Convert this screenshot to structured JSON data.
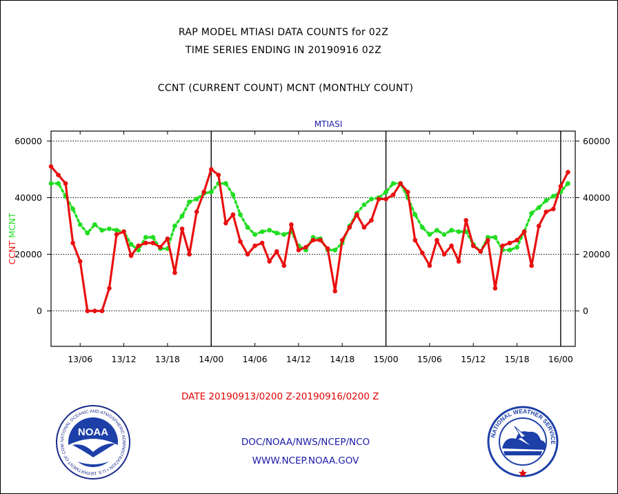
{
  "header": {
    "title_line1": "RAP MODEL MTIASI DATA COUNTS for 02Z",
    "title_line2": "TIME SERIES ENDING IN 20190916 02Z",
    "title_line3": "CCNT (CURRENT COUNT) MCNT (MONTHLY COUNT)"
  },
  "footer": {
    "date_range": "DATE 20190913/0200 Z-20190916/0200 Z",
    "org": "DOC/NOAA/NWS/NCEP/NCO",
    "url": "WWW.NCEP.NOAA.GOV"
  },
  "logos": {
    "noaa_text": "NOAA",
    "noaa_ring": "NATIONAL OCEANIC AND ATMOSPHERIC ADMINISTRATION • U.S. DEPARTMENT OF COMMERCE",
    "nws_ring": "NATIONAL WEATHER SERVICE"
  },
  "colors": {
    "ccnt": "#e81010",
    "mcnt": "#22dd22",
    "label_blue": "#1a1aa8",
    "footer_red": "#e00000"
  },
  "chart_data": {
    "type": "line",
    "title": "MTIASI",
    "ylabel_left_parts": [
      {
        "text": "CCNT",
        "color": "#e81010"
      },
      {
        "text": "MCNT",
        "color": "#22dd22"
      }
    ],
    "ylim": [
      -12500,
      63500
    ],
    "yticks": [
      0,
      20000,
      40000,
      60000
    ],
    "ytick_labels": [
      "0",
      "20000",
      "40000",
      "60000"
    ],
    "x_start_hour": 0,
    "x_end_hour": 72,
    "xticks": [
      {
        "label": "13/06",
        "hour": 4
      },
      {
        "label": "13/12",
        "hour": 10
      },
      {
        "label": "13/18",
        "hour": 16
      },
      {
        "label": "14/00",
        "hour": 22
      },
      {
        "label": "14/06",
        "hour": 28
      },
      {
        "label": "14/12",
        "hour": 34
      },
      {
        "label": "14/18",
        "hour": 40
      },
      {
        "label": "15/00",
        "hour": 46
      },
      {
        "label": "15/06",
        "hour": 52
      },
      {
        "label": "15/12",
        "hour": 58
      },
      {
        "label": "15/18",
        "hour": 64
      },
      {
        "label": "16/00",
        "hour": 70
      }
    ],
    "day_boundaries_hours": [
      22,
      46,
      70
    ],
    "grid": true,
    "series": [
      {
        "name": "CCNT",
        "color": "#e81010",
        "values": [
          51000,
          48000,
          45000,
          24000,
          17500,
          0,
          0,
          0,
          8000,
          27000,
          28000,
          19500,
          23000,
          24000,
          24000,
          22500,
          25500,
          13500,
          29000,
          20000,
          35000,
          42000,
          50000,
          48000,
          31000,
          34000,
          24500,
          20000,
          23000,
          24000,
          17500,
          21000,
          16000,
          30500,
          21500,
          22500,
          25000,
          25000,
          22000,
          7000,
          25000,
          29500,
          34000,
          29500,
          32000,
          39500,
          39500,
          41000,
          45000,
          42000,
          25000,
          20500,
          16000,
          25000,
          20000,
          23000,
          17500,
          32000,
          23000,
          21000,
          25000,
          8000,
          23000,
          24000,
          25000,
          28000,
          16000,
          30000,
          35000,
          36000,
          44000,
          49000
        ]
      },
      {
        "name": "MCNT",
        "color": "#22dd22",
        "values": [
          45000,
          45000,
          40500,
          36000,
          30500,
          27500,
          30500,
          28500,
          29000,
          28500,
          28000,
          23500,
          21500,
          26000,
          26000,
          22000,
          22000,
          30000,
          33500,
          38500,
          39500,
          41500,
          42000,
          45000,
          45000,
          41000,
          34000,
          29500,
          27000,
          28000,
          28500,
          27500,
          27000,
          28000,
          23000,
          21500,
          26000,
          25500,
          21500,
          21500,
          24000,
          30000,
          34500,
          37500,
          39500,
          40000,
          42000,
          45000,
          45000,
          40000,
          34000,
          29500,
          27000,
          28500,
          27000,
          28500,
          28000,
          28000,
          23500,
          21000,
          26000,
          26000,
          21500,
          21500,
          22500,
          28000,
          34500,
          36500,
          39000,
          40500,
          42000,
          45000
        ]
      }
    ]
  }
}
